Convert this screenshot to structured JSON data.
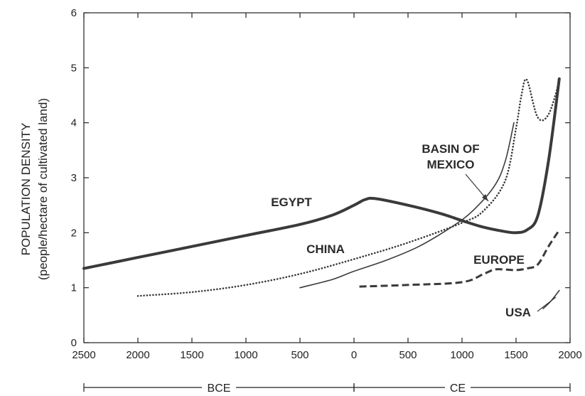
{
  "chart_data": {
    "type": "line",
    "title": "",
    "ylabel": "POPULATION DENSITY",
    "ylabel_sub": "(people/hectare of cultivated land)",
    "xlabel": "",
    "x_tick_labels": [
      "2500",
      "2000",
      "1500",
      "1000",
      "500",
      "0",
      "500",
      "1000",
      "1500",
      "2000"
    ],
    "y_tick_labels": [
      "0",
      "1",
      "2",
      "3",
      "4",
      "5",
      "6"
    ],
    "xlim": [
      -2500,
      2000
    ],
    "ylim": [
      0,
      6
    ],
    "grid": false,
    "eras": [
      {
        "label": "BCE",
        "from": -2500,
        "to": 0
      },
      {
        "label": "CE",
        "from": 0,
        "to": 2000
      }
    ],
    "series": [
      {
        "name": "EGYPT",
        "style": "thick-solid",
        "x": [
          -2500,
          -2000,
          -1500,
          -1000,
          -500,
          -200,
          0,
          100,
          200,
          500,
          800,
          1000,
          1200,
          1400,
          1500,
          1600,
          1700,
          1800,
          1900
        ],
        "y": [
          1.35,
          1.55,
          1.75,
          1.95,
          2.15,
          2.32,
          2.5,
          2.6,
          2.62,
          2.5,
          2.35,
          2.22,
          2.1,
          2.02,
          2.0,
          2.05,
          2.3,
          3.3,
          4.8
        ]
      },
      {
        "name": "CHINA",
        "style": "thin-solid",
        "x": [
          -500,
          -200,
          0,
          300,
          600,
          900,
          1100,
          1300,
          1400,
          1480
        ],
        "y": [
          1.0,
          1.15,
          1.3,
          1.5,
          1.75,
          2.1,
          2.4,
          2.85,
          3.3,
          4.0
        ]
      },
      {
        "name": "BASIN OF MEXICO",
        "style": "dotted",
        "x": [
          -2000,
          -1500,
          -1000,
          -500,
          0,
          500,
          1000,
          1200,
          1400,
          1500,
          1550,
          1600,
          1700,
          1800,
          1900
        ],
        "y": [
          0.85,
          0.92,
          1.05,
          1.25,
          1.52,
          1.82,
          2.18,
          2.4,
          2.95,
          3.9,
          4.5,
          4.78,
          4.1,
          4.15,
          4.75
        ]
      },
      {
        "name": "EUROPE",
        "style": "dashed",
        "x": [
          50,
          500,
          1000,
          1200,
          1300,
          1400,
          1500,
          1600,
          1700,
          1800,
          1900
        ],
        "y": [
          1.02,
          1.05,
          1.1,
          1.25,
          1.33,
          1.33,
          1.32,
          1.35,
          1.42,
          1.75,
          2.05
        ]
      },
      {
        "name": "USA",
        "style": "thin-solid",
        "x": [
          1750,
          1820,
          1900
        ],
        "y": [
          0.62,
          0.75,
          0.95
        ]
      }
    ]
  },
  "colors": {
    "line": "#3a3a3a",
    "axis": "#222222",
    "background": "#ffffff"
  }
}
